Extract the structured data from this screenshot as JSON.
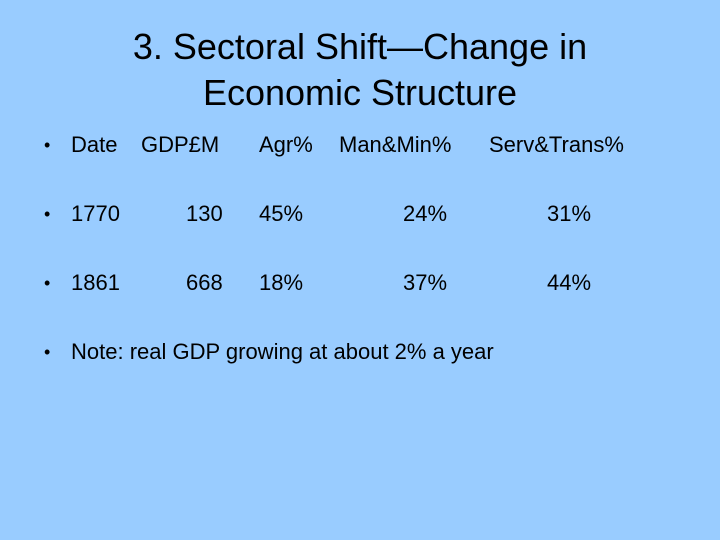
{
  "slide": {
    "title_line1": "3. Sectoral Shift—Change in",
    "title_line2": "Economic Structure",
    "bullet_glyph": "•",
    "header": {
      "date": "Date",
      "gdp": "GDP£M",
      "agr": "Agr%",
      "man": "Man&Min%",
      "serv": "Serv&Trans%"
    },
    "rows": [
      {
        "date": "1770",
        "gdp": "130",
        "agr": "45%",
        "man": "24%",
        "serv": "31%"
      },
      {
        "date": "1861",
        "gdp": "668",
        "agr": "18%",
        "man": "37%",
        "serv": "44%"
      }
    ],
    "note": "Note: real GDP growing at about 2% a year"
  }
}
